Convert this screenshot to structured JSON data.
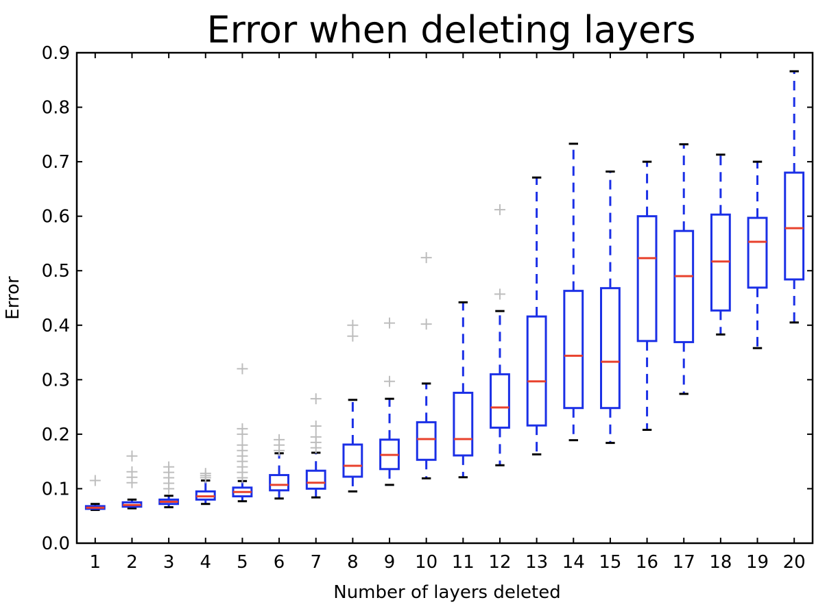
{
  "chart_data": {
    "type": "boxplot",
    "title": "Error when deleting layers",
    "xlabel": "Number of layers deleted",
    "ylabel": "Error",
    "ylim": [
      0.0,
      0.9
    ],
    "yticks": [
      "0.0",
      "0.1",
      "0.2",
      "0.3",
      "0.4",
      "0.5",
      "0.6",
      "0.7",
      "0.8",
      "0.9"
    ],
    "categories": [
      "1",
      "2",
      "3",
      "4",
      "5",
      "6",
      "7",
      "8",
      "9",
      "10",
      "11",
      "12",
      "13",
      "14",
      "15",
      "16",
      "17",
      "18",
      "19",
      "20"
    ],
    "grid": false,
    "colors": {
      "box": "#1a2fe6",
      "median": "#e8412c",
      "cap": "#000000",
      "outlier": "#bdbdbd",
      "axes": "#000000"
    },
    "boxes": [
      {
        "label": "1",
        "whislo": 0.061,
        "q1": 0.063,
        "med": 0.065,
        "q3": 0.068,
        "whishi": 0.072,
        "fliers": [
          0.115
        ]
      },
      {
        "label": "2",
        "whislo": 0.064,
        "q1": 0.067,
        "med": 0.07,
        "q3": 0.075,
        "whishi": 0.08,
        "fliers": [
          0.111,
          0.121,
          0.131,
          0.16
        ]
      },
      {
        "label": "3",
        "whislo": 0.066,
        "q1": 0.072,
        "med": 0.076,
        "q3": 0.08,
        "whishi": 0.087,
        "fliers": [
          0.1,
          0.11,
          0.12,
          0.13,
          0.14
        ]
      },
      {
        "label": "4",
        "whislo": 0.072,
        "q1": 0.08,
        "med": 0.086,
        "q3": 0.095,
        "whishi": 0.115,
        "fliers": [
          0.12,
          0.124,
          0.128
        ]
      },
      {
        "label": "5",
        "whislo": 0.077,
        "q1": 0.086,
        "med": 0.094,
        "q3": 0.102,
        "whishi": 0.114,
        "fliers": [
          0.12,
          0.13,
          0.14,
          0.15,
          0.16,
          0.17,
          0.18,
          0.2,
          0.21,
          0.32
        ]
      },
      {
        "label": "6",
        "whislo": 0.082,
        "q1": 0.097,
        "med": 0.107,
        "q3": 0.125,
        "whishi": 0.165,
        "fliers": [
          0.17,
          0.18,
          0.19
        ]
      },
      {
        "label": "7",
        "whislo": 0.084,
        "q1": 0.1,
        "med": 0.111,
        "q3": 0.133,
        "whishi": 0.166,
        "fliers": [
          0.175,
          0.185,
          0.195,
          0.215,
          0.265
        ]
      },
      {
        "label": "8",
        "whislo": 0.095,
        "q1": 0.122,
        "med": 0.142,
        "q3": 0.181,
        "whishi": 0.263,
        "fliers": [
          0.38,
          0.4
        ]
      },
      {
        "label": "9",
        "whislo": 0.107,
        "q1": 0.136,
        "med": 0.162,
        "q3": 0.19,
        "whishi": 0.265,
        "fliers": [
          0.297,
          0.404
        ]
      },
      {
        "label": "10",
        "whislo": 0.119,
        "q1": 0.153,
        "med": 0.191,
        "q3": 0.222,
        "whishi": 0.293,
        "fliers": [
          0.402,
          0.524
        ]
      },
      {
        "label": "11",
        "whislo": 0.121,
        "q1": 0.161,
        "med": 0.191,
        "q3": 0.276,
        "whishi": 0.442,
        "fliers": []
      },
      {
        "label": "12",
        "whislo": 0.143,
        "q1": 0.212,
        "med": 0.249,
        "q3": 0.31,
        "whishi": 0.426,
        "fliers": [
          0.457,
          0.612
        ]
      },
      {
        "label": "13",
        "whislo": 0.163,
        "q1": 0.216,
        "med": 0.297,
        "q3": 0.416,
        "whishi": 0.671,
        "fliers": []
      },
      {
        "label": "14",
        "whislo": 0.189,
        "q1": 0.248,
        "med": 0.344,
        "q3": 0.463,
        "whishi": 0.733,
        "fliers": []
      },
      {
        "label": "15",
        "whislo": 0.184,
        "q1": 0.248,
        "med": 0.333,
        "q3": 0.468,
        "whishi": 0.682,
        "fliers": []
      },
      {
        "label": "16",
        "whislo": 0.208,
        "q1": 0.371,
        "med": 0.523,
        "q3": 0.6,
        "whishi": 0.7,
        "fliers": []
      },
      {
        "label": "17",
        "whislo": 0.274,
        "q1": 0.369,
        "med": 0.49,
        "q3": 0.573,
        "whishi": 0.732,
        "fliers": []
      },
      {
        "label": "18",
        "whislo": 0.383,
        "q1": 0.427,
        "med": 0.517,
        "q3": 0.603,
        "whishi": 0.713,
        "fliers": []
      },
      {
        "label": "19",
        "whislo": 0.358,
        "q1": 0.469,
        "med": 0.553,
        "q3": 0.597,
        "whishi": 0.7,
        "fliers": []
      },
      {
        "label": "20",
        "whislo": 0.405,
        "q1": 0.484,
        "med": 0.578,
        "q3": 0.68,
        "whishi": 0.866,
        "fliers": []
      }
    ]
  }
}
